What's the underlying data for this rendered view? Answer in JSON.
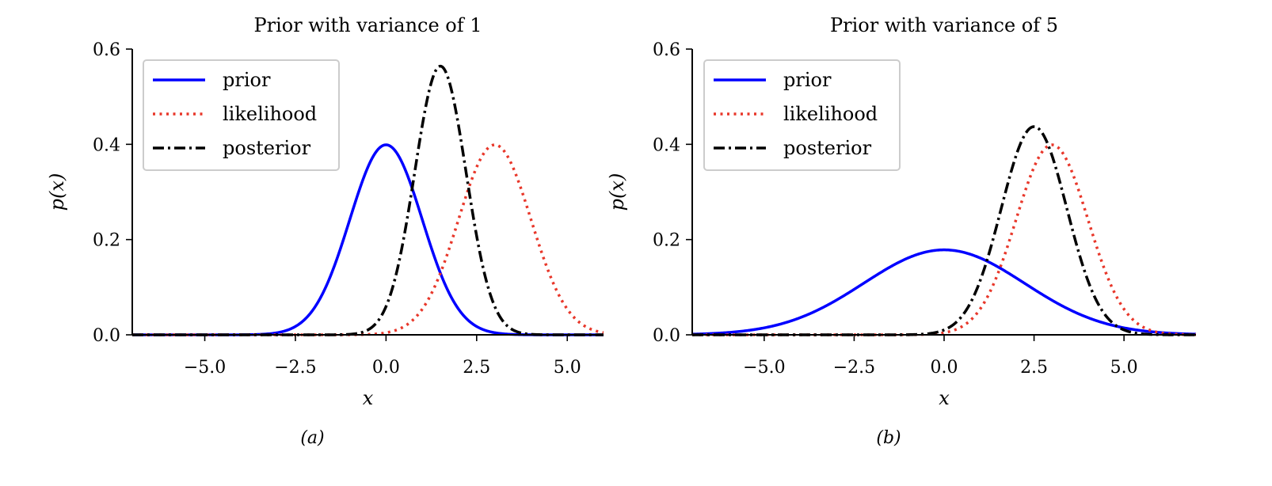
{
  "chart_data": [
    {
      "type": "line",
      "title": "Prior with variance of 1",
      "xlabel": "x",
      "ylabel": "p(x)",
      "caption": "(a)",
      "xlim": [
        -7,
        6
      ],
      "ylim": [
        0,
        0.6
      ],
      "xticks": [
        -5.0,
        -2.5,
        0.0,
        2.5,
        5.0
      ],
      "xtick_labels": [
        "−5.0",
        "−2.5",
        "0.0",
        "2.5",
        "5.0"
      ],
      "yticks": [
        0.0,
        0.2,
        0.4,
        0.6
      ],
      "ytick_labels": [
        "0.0",
        "0.2",
        "0.4",
        "0.6"
      ],
      "legend_position": "top-left",
      "series": [
        {
          "name": "prior",
          "distribution": "normal",
          "mean": 0.0,
          "variance": 1.0,
          "color": "#0000ff",
          "style": "solid"
        },
        {
          "name": "likelihood",
          "distribution": "normal",
          "mean": 3.0,
          "variance": 1.0,
          "color": "#e8372a",
          "style": "dotted"
        },
        {
          "name": "posterior",
          "distribution": "normal",
          "mean": 1.5,
          "variance": 0.5,
          "color": "#000000",
          "style": "dashdot"
        }
      ]
    },
    {
      "type": "line",
      "title": "Prior with variance of 5",
      "xlabel": "x",
      "ylabel": "p(x)",
      "caption": "(b)",
      "xlim": [
        -7,
        7
      ],
      "ylim": [
        0,
        0.6
      ],
      "xticks": [
        -5.0,
        -2.5,
        0.0,
        2.5,
        5.0
      ],
      "xtick_labels": [
        "−5.0",
        "−2.5",
        "0.0",
        "2.5",
        "5.0"
      ],
      "yticks": [
        0.0,
        0.2,
        0.4,
        0.6
      ],
      "ytick_labels": [
        "0.0",
        "0.2",
        "0.4",
        "0.6"
      ],
      "legend_position": "top-left",
      "series": [
        {
          "name": "prior",
          "distribution": "normal",
          "mean": 0.0,
          "variance": 5.0,
          "color": "#0000ff",
          "style": "solid"
        },
        {
          "name": "likelihood",
          "distribution": "normal",
          "mean": 3.0,
          "variance": 1.0,
          "color": "#e8372a",
          "style": "dotted"
        },
        {
          "name": "posterior",
          "distribution": "normal",
          "mean": 2.5,
          "variance": 0.833,
          "color": "#000000",
          "style": "dashdot"
        }
      ]
    }
  ]
}
